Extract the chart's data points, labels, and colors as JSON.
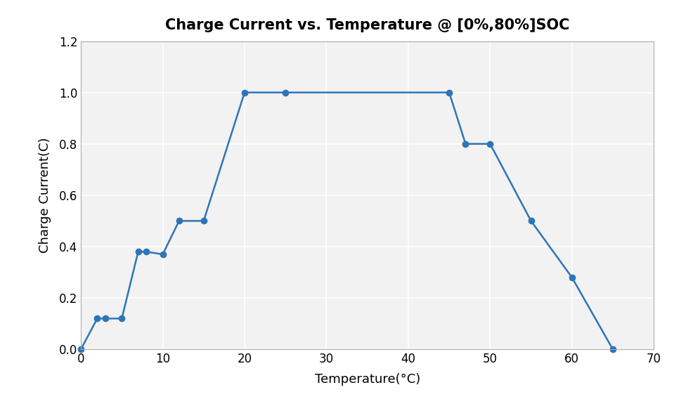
{
  "title": "Charge Current vs. Temperature @ [0%,80%]SOC",
  "xlabel": "Temperature(°C)",
  "ylabel": "Charge Current(C)",
  "x": [
    0,
    2,
    3,
    5,
    7,
    8,
    10,
    12,
    15,
    20,
    25,
    45,
    47,
    50,
    55,
    60,
    65
  ],
  "y": [
    0,
    0.12,
    0.12,
    0.12,
    0.38,
    0.38,
    0.37,
    0.5,
    0.5,
    1.0,
    1.0,
    1.0,
    0.8,
    0.8,
    0.5,
    0.28,
    0.0
  ],
  "xlim": [
    0,
    70
  ],
  "ylim": [
    0,
    1.2
  ],
  "xticks": [
    0,
    10,
    20,
    30,
    40,
    50,
    60,
    70
  ],
  "yticks": [
    0,
    0.2,
    0.4,
    0.6,
    0.8,
    1.0,
    1.2
  ],
  "line_color": "#2E75B6",
  "marker": "o",
  "marker_size": 6,
  "line_width": 1.8,
  "title_fontsize": 15,
  "label_fontsize": 13,
  "tick_fontsize": 12,
  "background_color": "#FFFFFF",
  "axes_bg_color": "#F2F2F2",
  "grid_color": "#FFFFFF",
  "grid": true
}
